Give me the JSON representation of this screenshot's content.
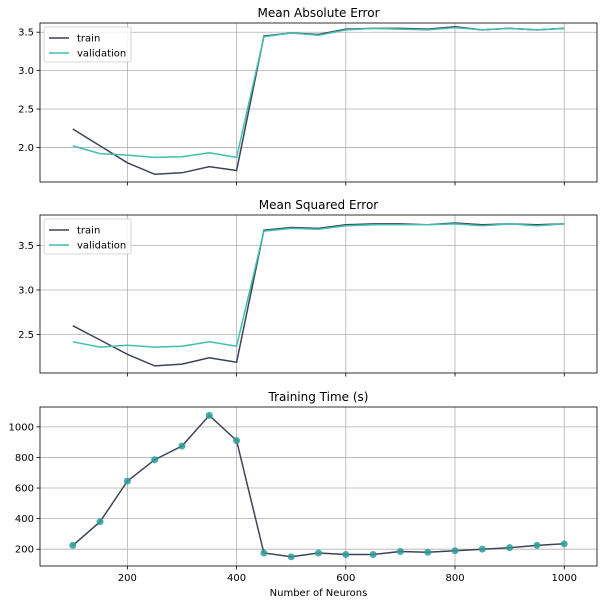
{
  "chart_data": [
    {
      "type": "line",
      "title": "Mean Absolute Error",
      "xlabel": "",
      "ylabel": "",
      "x": [
        100,
        150,
        200,
        250,
        300,
        350,
        400,
        450,
        500,
        550,
        600,
        650,
        700,
        750,
        800,
        850,
        900,
        950,
        1000
      ],
      "xlim": [
        40,
        1060
      ],
      "ylim": [
        1.55,
        3.62
      ],
      "yticks": [
        2.0,
        2.5,
        3.0,
        3.5
      ],
      "yticklabels": [
        "2.0",
        "2.5",
        "3.0",
        "3.5"
      ],
      "xticks": [
        200,
        400,
        600,
        800,
        1000
      ],
      "xticklabels": [],
      "grid": true,
      "legend": "upper left",
      "series": [
        {
          "name": "train",
          "color": "#3d4457",
          "values": [
            2.24,
            2.02,
            1.8,
            1.65,
            1.67,
            1.75,
            1.7,
            3.45,
            3.49,
            3.47,
            3.54,
            3.55,
            3.55,
            3.54,
            3.57,
            3.53,
            3.55,
            3.53,
            3.55
          ]
        },
        {
          "name": "validation",
          "color": "#3fbfad",
          "values": [
            2.02,
            1.92,
            1.9,
            1.87,
            1.88,
            1.93,
            1.87,
            3.44,
            3.49,
            3.46,
            3.53,
            3.55,
            3.54,
            3.53,
            3.56,
            3.53,
            3.55,
            3.53,
            3.55
          ]
        }
      ]
    },
    {
      "type": "line",
      "title": "Mean Squared Error",
      "xlabel": "",
      "ylabel": "",
      "x": [
        100,
        150,
        200,
        250,
        300,
        350,
        400,
        450,
        500,
        550,
        600,
        650,
        700,
        750,
        800,
        850,
        900,
        950,
        1000
      ],
      "xlim": [
        40,
        1060
      ],
      "ylim": [
        2.07,
        3.84
      ],
      "yticks": [
        2.5,
        3.0,
        3.5
      ],
      "yticklabels": [
        "2.5",
        "3.0",
        "3.5"
      ],
      "xticks": [
        200,
        400,
        600,
        800,
        1000
      ],
      "xticklabels": [],
      "grid": true,
      "legend": "upper left",
      "series": [
        {
          "name": "train",
          "color": "#3d4457",
          "values": [
            2.6,
            2.44,
            2.28,
            2.15,
            2.17,
            2.24,
            2.19,
            3.67,
            3.7,
            3.69,
            3.73,
            3.74,
            3.74,
            3.73,
            3.75,
            3.73,
            3.74,
            3.73,
            3.74
          ]
        },
        {
          "name": "validation",
          "color": "#3fbfad",
          "values": [
            2.42,
            2.36,
            2.38,
            2.36,
            2.37,
            2.42,
            2.37,
            3.66,
            3.69,
            3.68,
            3.72,
            3.73,
            3.73,
            3.73,
            3.74,
            3.72,
            3.74,
            3.72,
            3.74
          ]
        }
      ]
    },
    {
      "type": "line",
      "title": "Training Time (s)",
      "xlabel": "Number of Neurons",
      "ylabel": "",
      "x": [
        100,
        150,
        200,
        250,
        300,
        350,
        400,
        450,
        500,
        550,
        600,
        650,
        700,
        750,
        800,
        850,
        900,
        950,
        1000
      ],
      "xlim": [
        40,
        1060
      ],
      "ylim": [
        90,
        1130
      ],
      "yticks": [
        200,
        400,
        600,
        800,
        1000
      ],
      "yticklabels": [
        "200",
        "400",
        "600",
        "800",
        "1000"
      ],
      "xticks": [
        200,
        400,
        600,
        800,
        1000
      ],
      "xticklabels": [
        "200",
        "400",
        "600",
        "800",
        "1000"
      ],
      "grid": true,
      "line_color": "#3d4457",
      "marker_color": "#2a9d96",
      "values": [
        225,
        380,
        645,
        785,
        875,
        1075,
        910,
        175,
        150,
        175,
        165,
        165,
        185,
        180,
        190,
        200,
        210,
        225,
        235
      ]
    }
  ]
}
